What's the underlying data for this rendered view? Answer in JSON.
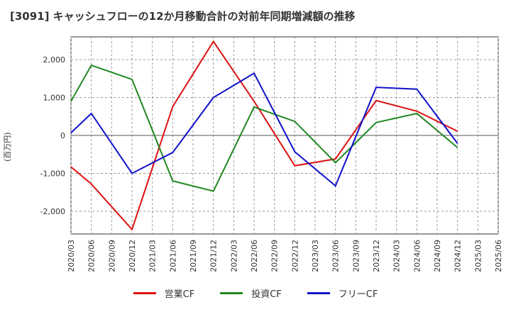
{
  "chart_data": {
    "type": "line",
    "title": "[3091]  キャッシュフローの12か月移動合計の対前年同期増減額の推移",
    "ylabel": "(百万円)",
    "xlabel": "",
    "ylim": [
      -2600,
      2600
    ],
    "yticks": [
      2000,
      1000,
      0,
      -1000,
      -2000
    ],
    "ytick_labels": [
      "2,000",
      "1,000",
      "0",
      "-1,000",
      "-2,000"
    ],
    "categories": [
      "2020/03",
      "2020/06",
      "2020/09",
      "2020/12",
      "2021/03",
      "2021/06",
      "2021/09",
      "2021/12",
      "2022/03",
      "2022/06",
      "2022/09",
      "2022/12",
      "2023/03",
      "2023/06",
      "2023/09",
      "2023/12",
      "2024/03",
      "2024/06",
      "2024/09",
      "2024/12",
      "2025/03",
      "2025/06"
    ],
    "series": [
      {
        "name": "営業CF",
        "color": "#dd1111",
        "values": [
          -830,
          -1280,
          null,
          -2480,
          null,
          760,
          null,
          2480,
          null,
          900,
          null,
          -800,
          null,
          -620,
          null,
          920,
          null,
          640,
          null,
          110,
          null,
          null
        ]
      },
      {
        "name": "投資CF",
        "color": "#228822",
        "values": [
          900,
          1850,
          null,
          1480,
          null,
          -1200,
          null,
          -1470,
          null,
          750,
          null,
          370,
          null,
          -720,
          null,
          340,
          null,
          580,
          null,
          -320,
          null,
          null
        ]
      },
      {
        "name": "フリーCF",
        "color": "#1111cc",
        "values": [
          70,
          580,
          null,
          -1000,
          null,
          -450,
          null,
          1000,
          null,
          1640,
          null,
          -430,
          null,
          -1330,
          null,
          1270,
          null,
          1220,
          null,
          -210,
          null,
          null
        ]
      }
    ]
  }
}
